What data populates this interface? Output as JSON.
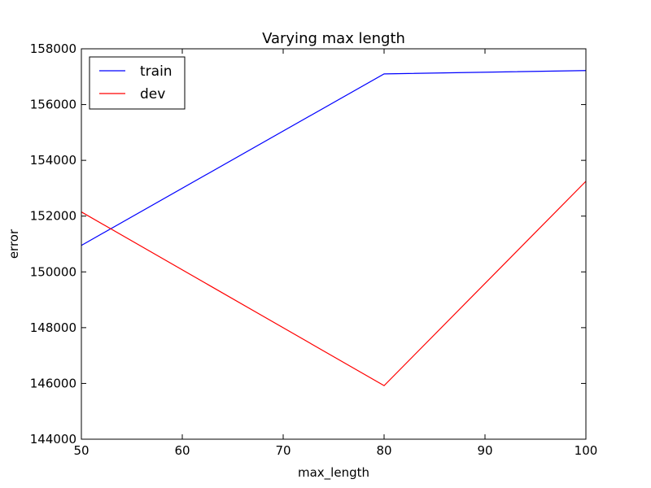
{
  "chart_data": {
    "type": "line",
    "title": "Varying max length",
    "xlabel": "max_length",
    "ylabel": "error",
    "x": [
      50,
      80,
      100
    ],
    "xlim": [
      50,
      100
    ],
    "ylim": [
      144000,
      158000
    ],
    "xticks": [
      50,
      60,
      70,
      80,
      90,
      100
    ],
    "yticks": [
      144000,
      146000,
      148000,
      150000,
      152000,
      154000,
      156000,
      158000
    ],
    "grid": false,
    "legend_position": "top-left",
    "series": [
      {
        "name": "train",
        "color": "#0000ff",
        "values": [
          150950,
          157100,
          157220
        ]
      },
      {
        "name": "dev",
        "color": "#ff0000",
        "values": [
          152150,
          145920,
          153250
        ]
      }
    ]
  }
}
